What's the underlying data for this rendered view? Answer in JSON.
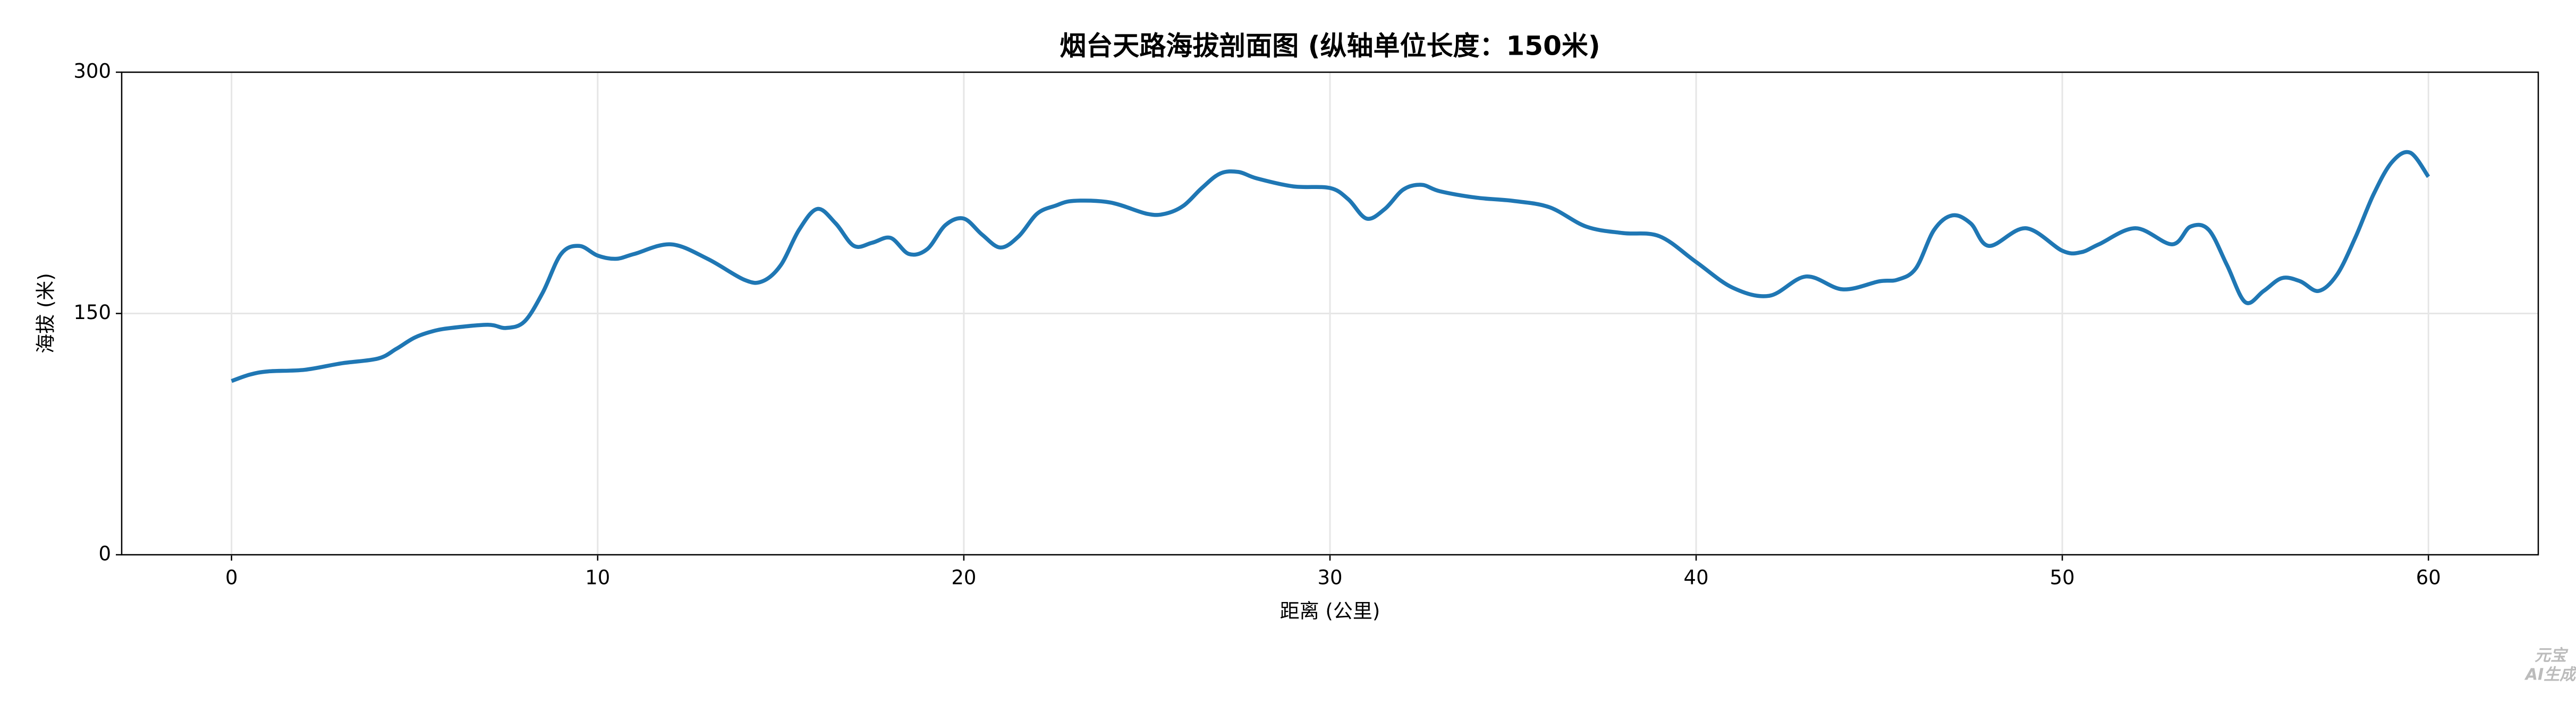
{
  "chart_data": {
    "type": "line",
    "title": "烟台天路海拔剖面图 (纵轴单位长度：150米)",
    "xlabel": "距离 (公里)",
    "ylabel": "海拔 (米)",
    "x": [
      0,
      0.5,
      1,
      2,
      3,
      4,
      4.5,
      5,
      5.5,
      6,
      7,
      7.5,
      8,
      8.5,
      9,
      9.5,
      10,
      10.5,
      11,
      12,
      13,
      14,
      14.5,
      15,
      15.5,
      16,
      16.5,
      17,
      17.5,
      18,
      18.5,
      19,
      19.5,
      20,
      20.5,
      21,
      21.5,
      22,
      22.5,
      23,
      24,
      25,
      25.5,
      26,
      26.5,
      27,
      27.5,
      28,
      29,
      30,
      30.5,
      31,
      31.5,
      32,
      32.5,
      33,
      34,
      35,
      36,
      37,
      38,
      39,
      40,
      41,
      42,
      43,
      44,
      45,
      45.5,
      46,
      46.5,
      47,
      47.5,
      48,
      49,
      50,
      50.5,
      51,
      52,
      53,
      53.5,
      54,
      54.5,
      55,
      55.5,
      56,
      56.5,
      57,
      57.5,
      58,
      58.5,
      59,
      59.5,
      60
    ],
    "series": [
      {
        "name": "海拔",
        "color": "#1f77b4",
        "values": [
          108,
          112,
          114,
          115,
          119,
          122,
          128,
          135,
          139,
          141,
          143,
          141,
          145,
          163,
          187,
          192,
          186,
          184,
          187,
          193,
          184,
          171,
          170,
          180,
          202,
          215,
          206,
          192,
          194,
          197,
          187,
          190,
          205,
          209,
          199,
          191,
          198,
          212,
          217,
          220,
          219,
          212,
          212,
          217,
          228,
          237,
          238,
          234,
          229,
          228,
          221,
          209,
          215,
          227,
          230,
          226,
          222,
          220,
          216,
          204,
          200,
          198,
          182,
          166,
          161,
          173,
          165,
          170,
          171,
          178,
          202,
          211,
          206,
          192,
          203,
          189,
          188,
          193,
          203,
          193,
          204,
          202,
          180,
          157,
          164,
          172,
          170,
          164,
          174,
          197,
          224,
          244,
          250,
          235
        ]
      }
    ],
    "xlim": [
      -3,
      63
    ],
    "xticks": [
      0,
      10,
      20,
      30,
      40,
      50,
      60
    ],
    "ylim": [
      0,
      300
    ],
    "yticks": [
      0,
      150,
      300
    ],
    "grid": true
  },
  "watermark": [
    "元宝",
    "AI生成"
  ]
}
